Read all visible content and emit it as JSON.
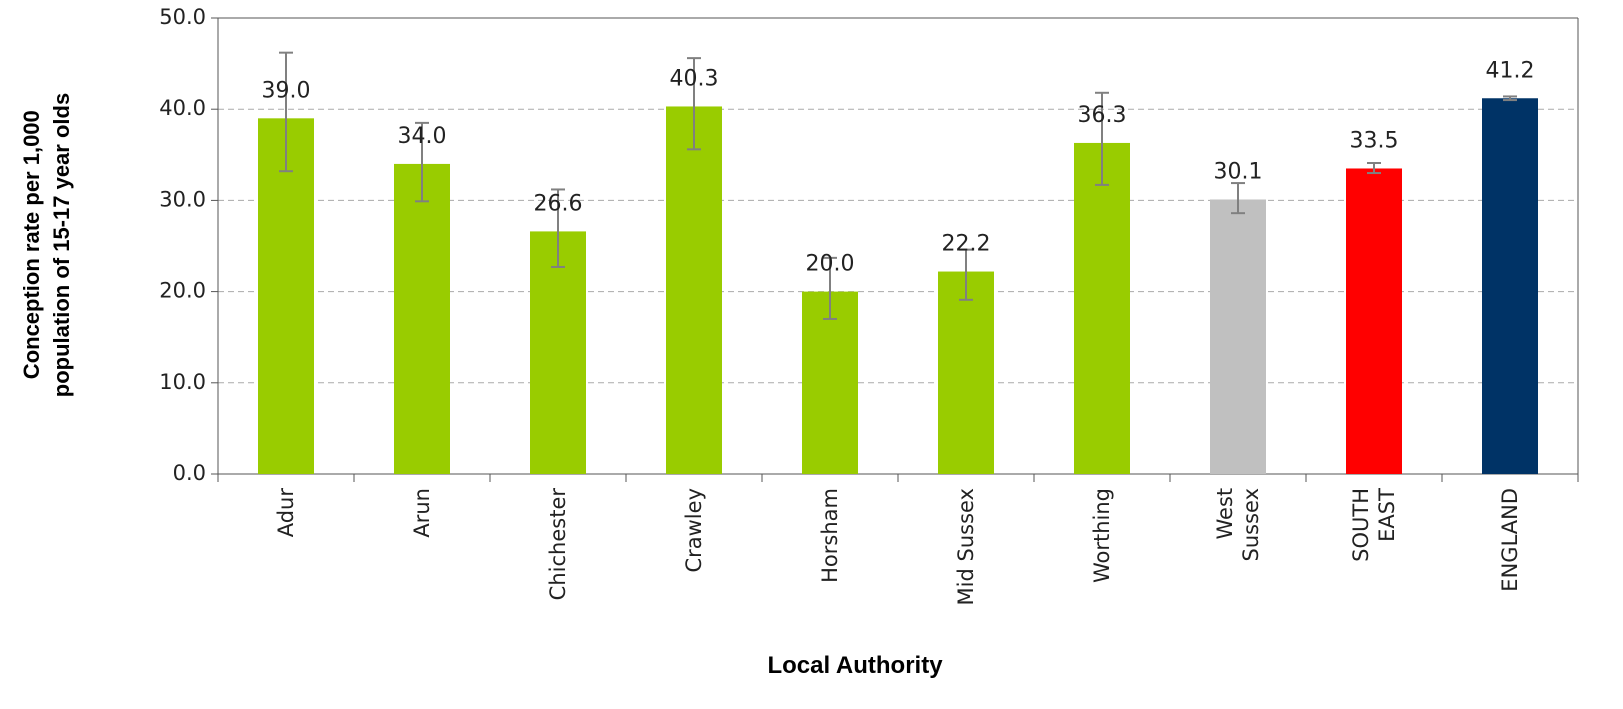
{
  "chart_data": {
    "type": "bar",
    "x_label": "Local Authority",
    "y_label": "Conception rate per 1,000\npopulation of 15-17 year olds",
    "categories": [
      "Adur",
      "Arun",
      "Chichester",
      "Crawley",
      "Horsham",
      "Mid Sussex",
      "Worthing",
      "West\nSussex",
      "SOUTH\nEAST",
      "ENGLAND"
    ],
    "values": [
      39.0,
      34.0,
      26.6,
      40.3,
      20.0,
      22.2,
      36.3,
      30.1,
      33.5,
      41.2
    ],
    "value_labels": [
      "39.0",
      "34.0",
      "26.6",
      "40.3",
      "20.0",
      "22.2",
      "36.3",
      "30.1",
      "33.5",
      "41.2"
    ],
    "lower": [
      33.2,
      29.9,
      22.7,
      35.6,
      17.0,
      19.1,
      31.7,
      28.6,
      33.0,
      41.0
    ],
    "upper": [
      46.2,
      38.5,
      31.2,
      45.6,
      23.7,
      24.6,
      41.8,
      31.9,
      34.1,
      41.4
    ],
    "colors": [
      "#99cc00",
      "#99cc00",
      "#99cc00",
      "#99cc00",
      "#99cc00",
      "#99cc00",
      "#99cc00",
      "#c0c0c0",
      "#ff0000",
      "#003366"
    ],
    "ylim": [
      0,
      50
    ],
    "yticks": [
      {
        "value": 0,
        "label": "0.0"
      },
      {
        "value": 10,
        "label": "10.0"
      },
      {
        "value": 20,
        "label": "20.0"
      },
      {
        "value": 30,
        "label": "30.0"
      },
      {
        "value": 40,
        "label": "40.0"
      },
      {
        "value": 50,
        "label": "50.0"
      }
    ],
    "grid": true
  }
}
